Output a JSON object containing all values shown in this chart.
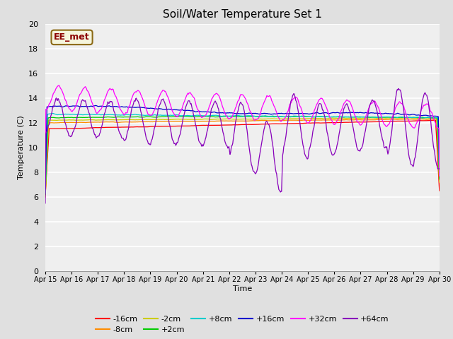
{
  "title": "Soil/Water Temperature Set 1",
  "xlabel": "Time",
  "ylabel": "Temperature (C)",
  "ylim": [
    0,
    20
  ],
  "yticks": [
    0,
    2,
    4,
    6,
    8,
    10,
    12,
    14,
    16,
    18,
    20
  ],
  "date_labels": [
    "Apr 15",
    "Apr 16",
    "Apr 17",
    "Apr 18",
    "Apr 19",
    "Apr 20",
    "Apr 21",
    "Apr 22",
    "Apr 23",
    "Apr 24",
    "Apr 25",
    "Apr 26",
    "Apr 27",
    "Apr 28",
    "Apr 29",
    "Apr 30"
  ],
  "background_color": "#e0e0e0",
  "plot_bg_color": "#e0e0e0",
  "annotation_text": "EE_met",
  "annotation_color": "#8b0000",
  "annotation_bg": "#f5f5dc",
  "series": [
    {
      "label": "-16cm",
      "color": "#ff0000"
    },
    {
      "label": "-8cm",
      "color": "#ff8c00"
    },
    {
      "label": "-2cm",
      "color": "#cccc00"
    },
    {
      "label": "+2cm",
      "color": "#00cc00"
    },
    {
      "label": "+8cm",
      "color": "#00cccc"
    },
    {
      "label": "+16cm",
      "color": "#0000cc"
    },
    {
      "label": "+32cm",
      "color": "#ff00ff"
    },
    {
      "label": "+64cm",
      "color": "#8800bb"
    }
  ]
}
